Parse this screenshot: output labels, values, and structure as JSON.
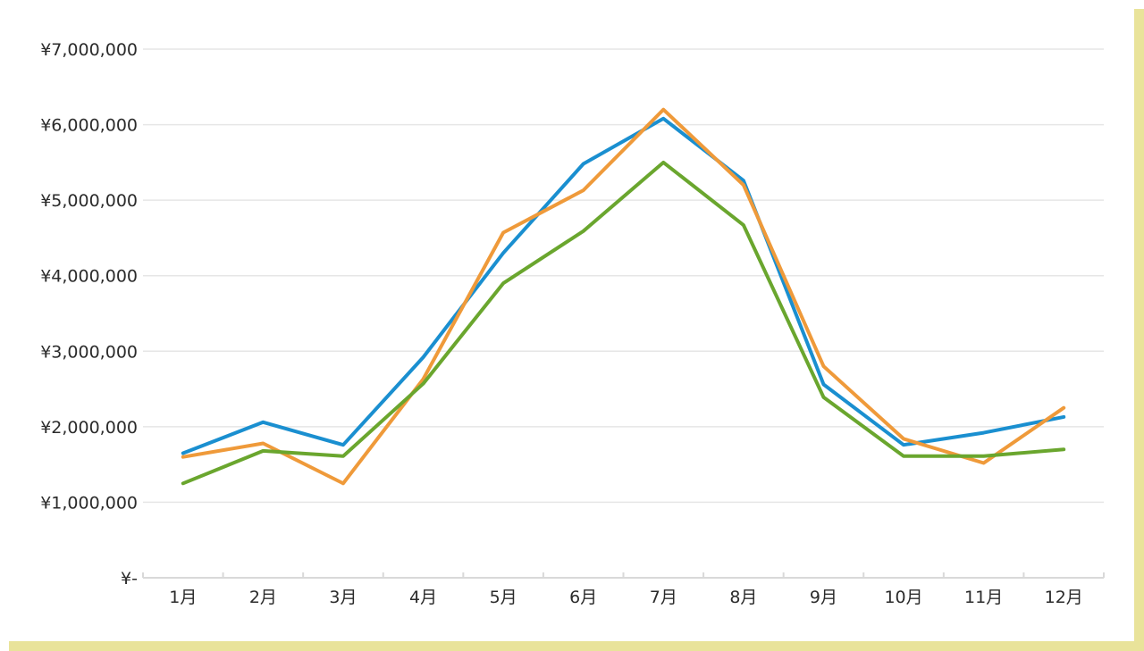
{
  "chart_data": {
    "type": "line",
    "title": "",
    "xlabel": "",
    "ylabel": "",
    "categories": [
      "1月",
      "2月",
      "3月",
      "4月",
      "5月",
      "6月",
      "7月",
      "8月",
      "9月",
      "10月",
      "11月",
      "12月"
    ],
    "ylim": [
      0,
      7000000
    ],
    "y_ticks": [
      {
        "value": 0,
        "label": "¥-"
      },
      {
        "value": 1000000,
        "label": "¥1,000,000"
      },
      {
        "value": 2000000,
        "label": "¥2,000,000"
      },
      {
        "value": 3000000,
        "label": "¥3,000,000"
      },
      {
        "value": 4000000,
        "label": "¥4,000,000"
      },
      {
        "value": 5000000,
        "label": "¥5,000,000"
      },
      {
        "value": 6000000,
        "label": "¥6,000,000"
      },
      {
        "value": 7000000,
        "label": "¥7,000,000"
      }
    ],
    "grid": true,
    "legend": "none",
    "series": [
      {
        "color": "#1a8fd0",
        "values": [
          1650000,
          2060000,
          1760000,
          2920000,
          4300000,
          5480000,
          6080000,
          5260000,
          2560000,
          1760000,
          1920000,
          2130000
        ]
      },
      {
        "color": "#ef9a3a",
        "values": [
          1600000,
          1780000,
          1250000,
          2630000,
          4570000,
          5130000,
          6200000,
          5200000,
          2800000,
          1840000,
          1520000,
          2250000
        ]
      },
      {
        "color": "#6aa62e",
        "values": [
          1250000,
          1680000,
          1610000,
          2570000,
          3900000,
          4590000,
          5500000,
          4670000,
          2390000,
          1610000,
          1610000,
          1700000
        ]
      }
    ]
  },
  "colors": {
    "frame_accent": "#e9e39a",
    "grid": "#e6e6e6",
    "axis": "#d9d9d9"
  }
}
